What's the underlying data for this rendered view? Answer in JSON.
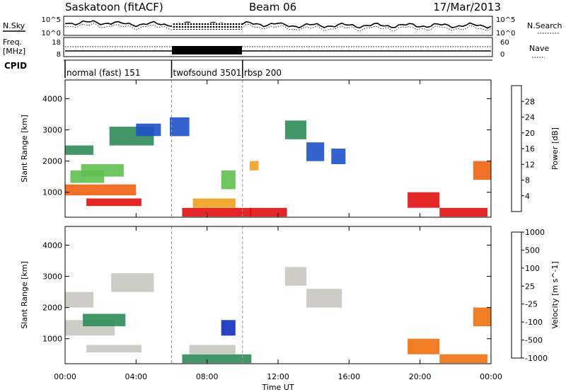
{
  "header": {
    "station": "Saskatoon (fitACF)",
    "beam": "Beam 06",
    "date": "17/Mar/2013"
  },
  "strip": {
    "nsky_label": "N.Sky",
    "nsky_ticks": [
      "10^5",
      "10^0"
    ],
    "nsearch_label": "N.Search",
    "nsearch_ticks": [
      "10^5",
      "10^0"
    ],
    "freq_label_1": "Freq.",
    "freq_label_2": "[MHz]",
    "freq_ticks": [
      "18",
      "8"
    ],
    "nave_label": "Nave",
    "nave_ticks": [
      "60",
      "0"
    ],
    "cpid_label": "CPID",
    "cpid_modes": [
      {
        "name": "normal (fast) 151",
        "start_h": 0,
        "end_h": 6
      },
      {
        "name": "twofsound 3501",
        "start_h": 6,
        "end_h": 10
      },
      {
        "name": "rbsp 200",
        "start_h": 10,
        "end_h": 24
      }
    ]
  },
  "chart_data": [
    {
      "type": "heatmap",
      "title": "",
      "xlabel": "Time UT",
      "ylabel": "Slant Range [km]",
      "xlim": [
        0,
        24
      ],
      "ylim": [
        200,
        4600
      ],
      "x_ticks": [
        "00:00",
        "04:00",
        "08:00",
        "12:00",
        "16:00",
        "20:00",
        "00:00"
      ],
      "y_ticks": [
        1000,
        2000,
        3000,
        4000
      ],
      "colorbar": {
        "label": "Power [dB]",
        "ticks": [
          4,
          8,
          12,
          16,
          20,
          24,
          28
        ],
        "range": [
          0,
          32
        ],
        "colors": [
          "#1010f0",
          "#1e50c8",
          "#2e8b57",
          "#5fbf4f",
          "#b8d838",
          "#f0a020",
          "#f06010",
          "#e01010"
        ]
      },
      "regions": [
        {
          "t": [
            0.0,
            1.6
          ],
          "r": [
            2200,
            2500
          ],
          "v": 8
        },
        {
          "t": [
            0.3,
            2.2
          ],
          "r": [
            1300,
            1700
          ],
          "v": 14
        },
        {
          "t": [
            0.9,
            3.3
          ],
          "r": [
            1500,
            1900
          ],
          "v": 12
        },
        {
          "t": [
            0.0,
            4.0
          ],
          "r": [
            900,
            1250
          ],
          "v": 26
        },
        {
          "t": [
            1.2,
            4.3
          ],
          "r": [
            560,
            800
          ],
          "v": 28
        },
        {
          "t": [
            2.5,
            5.0
          ],
          "r": [
            2500,
            3100
          ],
          "v": 9
        },
        {
          "t": [
            4.0,
            5.4
          ],
          "r": [
            2800,
            3200
          ],
          "v": 6
        },
        {
          "t": [
            5.9,
            7.0
          ],
          "r": [
            2800,
            3400
          ],
          "v": 7
        },
        {
          "t": [
            6.6,
            10.5
          ],
          "r": [
            220,
            500
          ],
          "v": 30
        },
        {
          "t": [
            7.2,
            9.6
          ],
          "r": [
            500,
            800
          ],
          "v": 20
        },
        {
          "t": [
            8.8,
            9.6
          ],
          "r": [
            1100,
            1700
          ],
          "v": 14
        },
        {
          "t": [
            10.4,
            12.5
          ],
          "r": [
            220,
            500
          ],
          "v": 28
        },
        {
          "t": [
            10.4,
            10.9
          ],
          "r": [
            1700,
            2000
          ],
          "v": 22
        },
        {
          "t": [
            12.4,
            13.6
          ],
          "r": [
            2700,
            3300
          ],
          "v": 8
        },
        {
          "t": [
            13.6,
            14.6
          ],
          "r": [
            2000,
            2600
          ],
          "v": 6
        },
        {
          "t": [
            15.0,
            15.8
          ],
          "r": [
            1900,
            2400
          ],
          "v": 6
        },
        {
          "t": [
            19.3,
            21.1
          ],
          "r": [
            500,
            1000
          ],
          "v": 28
        },
        {
          "t": [
            21.1,
            23.8
          ],
          "r": [
            220,
            500
          ],
          "v": 30
        },
        {
          "t": [
            23.0,
            24.0
          ],
          "r": [
            1400,
            2000
          ],
          "v": 26
        }
      ]
    },
    {
      "type": "heatmap",
      "title": "",
      "xlabel": "Time UT",
      "ylabel": "Slant Range [km]",
      "xlim": [
        0,
        24
      ],
      "ylim": [
        200,
        4600
      ],
      "x_ticks": [
        "00:00",
        "04:00",
        "08:00",
        "12:00",
        "16:00",
        "20:00",
        "00:00"
      ],
      "y_ticks": [
        1000,
        2000,
        3000,
        4000
      ],
      "colorbar": {
        "label": "Velocity [m s^-1]",
        "ticks": [
          1000,
          500,
          100,
          25,
          -25,
          -100,
          -500,
          -1000
        ],
        "colors": [
          "#1030c0",
          "#2e8b57",
          "#5fc03a",
          "#c8c8c0",
          "#f0a020",
          "#f07010",
          "#e01010"
        ]
      },
      "regions": [
        {
          "t": [
            0.0,
            2.8
          ],
          "r": [
            1100,
            1600
          ],
          "v": 0
        },
        {
          "t": [
            0.0,
            1.6
          ],
          "r": [
            2000,
            2500
          ],
          "v": 0
        },
        {
          "t": [
            1.0,
            3.4
          ],
          "r": [
            1400,
            1800
          ],
          "v": 150
        },
        {
          "t": [
            1.2,
            4.3
          ],
          "r": [
            560,
            800
          ],
          "v": 0
        },
        {
          "t": [
            2.6,
            5.0
          ],
          "r": [
            2500,
            3100
          ],
          "v": 0
        },
        {
          "t": [
            6.6,
            10.5
          ],
          "r": [
            220,
            500
          ],
          "v": 150
        },
        {
          "t": [
            7.0,
            9.6
          ],
          "r": [
            500,
            800
          ],
          "v": 0
        },
        {
          "t": [
            8.8,
            9.6
          ],
          "r": [
            1100,
            1600
          ],
          "v": 700
        },
        {
          "t": [
            12.4,
            13.6
          ],
          "r": [
            2700,
            3300
          ],
          "v": 0
        },
        {
          "t": [
            13.6,
            15.6
          ],
          "r": [
            2000,
            2600
          ],
          "v": 0
        },
        {
          "t": [
            19.3,
            21.1
          ],
          "r": [
            500,
            1000
          ],
          "v": -300
        },
        {
          "t": [
            21.1,
            23.8
          ],
          "r": [
            220,
            500
          ],
          "v": -300
        },
        {
          "t": [
            23.0,
            24.0
          ],
          "r": [
            1400,
            2000
          ],
          "v": -300
        }
      ]
    }
  ]
}
